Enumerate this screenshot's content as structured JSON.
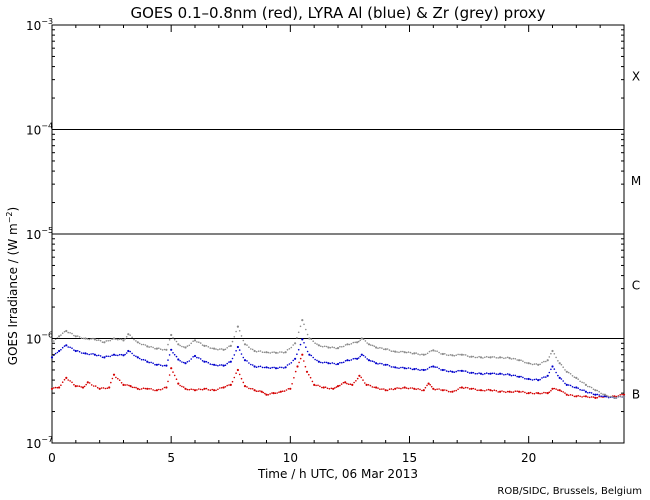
{
  "chart_data": {
    "type": "scatter",
    "title": "GOES 0.1–0.8nm (red), LYRA Al (blue) & Zr (grey) proxy",
    "xlabel": "Time / h UTC, 06 Mar 2013",
    "ylabel_parts": {
      "pre": "GOES Irradiance / (W m",
      "sup": "−2",
      "post": ")"
    },
    "footer": "ROB/SIDC, Brussels, Belgium",
    "x_range": [
      0,
      24
    ],
    "y_range": [
      1e-07,
      0.001
    ],
    "y_scale": "log",
    "x_ticks": [
      {
        "value": 0,
        "label": "0"
      },
      {
        "value": 5,
        "label": "5"
      },
      {
        "value": 10,
        "label": "10"
      },
      {
        "value": 15,
        "label": "15"
      },
      {
        "value": 20,
        "label": "20"
      }
    ],
    "y_ticks": [
      {
        "value": 1e-07,
        "base": "10",
        "exp": "−7"
      },
      {
        "value": 1e-06,
        "base": "10",
        "exp": "−6"
      },
      {
        "value": 1e-05,
        "base": "10",
        "exp": "−5"
      },
      {
        "value": 0.0001,
        "base": "10",
        "exp": "−4"
      },
      {
        "value": 0.001,
        "base": "10",
        "exp": "−3"
      }
    ],
    "flare_levels": [
      1e-06,
      1e-05,
      0.0001
    ],
    "classes": [
      {
        "label": "X",
        "y": 0.00032
      },
      {
        "label": "M",
        "y": 3.2e-05
      },
      {
        "label": "C",
        "y": 3.2e-06
      },
      {
        "label": "B",
        "y": 2.9e-07
      }
    ],
    "colors": {
      "red": "#d40000",
      "blue": "#0000cc",
      "grey": "#8c8c8c"
    },
    "series": [
      {
        "color": "red",
        "x": [
          0,
          0.3,
          0.6,
          1.0,
          1.3,
          1.5,
          2.0,
          2.4,
          2.6,
          3.0,
          3.3,
          3.6,
          4.0,
          4.4,
          4.8,
          5.0,
          5.3,
          5.6,
          6.0,
          6.4,
          6.8,
          7.2,
          7.5,
          7.8,
          8.1,
          8.5,
          8.8,
          9.0,
          9.3,
          9.6,
          10.0,
          10.3,
          10.5,
          10.7,
          11.0,
          11.4,
          11.8,
          12.0,
          12.3,
          12.6,
          12.9,
          13.2,
          13.6,
          14.0,
          14.4,
          14.8,
          15.2,
          15.6,
          15.8,
          16.0,
          16.4,
          16.8,
          17.2,
          17.6,
          18.0,
          18.4,
          18.8,
          19.2,
          19.6,
          20.0,
          20.4,
          20.8,
          21.0,
          21.3,
          21.6,
          22.0,
          22.4,
          22.8,
          23.2,
          23.6,
          24.0
        ],
        "y": [
          3.3e-07,
          3.4e-07,
          4.2e-07,
          3.5e-07,
          3.4e-07,
          3.8e-07,
          3.3e-07,
          3.4e-07,
          4.5e-07,
          3.6e-07,
          3.5e-07,
          3.3e-07,
          3.3e-07,
          3.2e-07,
          3.4e-07,
          5.2e-07,
          3.7e-07,
          3.3e-07,
          3.2e-07,
          3.3e-07,
          3.2e-07,
          3.4e-07,
          3.6e-07,
          5e-07,
          3.5e-07,
          3.2e-07,
          3.1e-07,
          2.9e-07,
          3e-07,
          3.1e-07,
          3.3e-07,
          5.4e-07,
          7e-07,
          4.8e-07,
          3.6e-07,
          3.4e-07,
          3.3e-07,
          3.5e-07,
          3.8e-07,
          3.6e-07,
          4.4e-07,
          3.6e-07,
          3.4e-07,
          3.2e-07,
          3.3e-07,
          3.4e-07,
          3.3e-07,
          3.2e-07,
          3.7e-07,
          3.3e-07,
          3.2e-07,
          3.1e-07,
          3.4e-07,
          3.3e-07,
          3.2e-07,
          3.2e-07,
          3.1e-07,
          3.1e-07,
          3.1e-07,
          3e-07,
          3e-07,
          3e-07,
          3.3e-07,
          3.2e-07,
          2.9e-07,
          2.8e-07,
          2.8e-07,
          2.7e-07,
          2.8e-07,
          2.8e-07,
          2.9e-07
        ]
      },
      {
        "color": "blue",
        "x": [
          0,
          0.3,
          0.6,
          1.0,
          1.4,
          1.8,
          2.2,
          2.6,
          3.0,
          3.2,
          3.6,
          4.0,
          4.4,
          4.8,
          5.0,
          5.3,
          5.6,
          6.0,
          6.4,
          6.8,
          7.2,
          7.5,
          7.8,
          8.1,
          8.5,
          9.0,
          9.4,
          9.8,
          10.2,
          10.5,
          10.8,
          11.2,
          11.6,
          12.0,
          12.4,
          12.8,
          13.0,
          13.3,
          13.6,
          14.0,
          14.4,
          14.8,
          15.2,
          15.6,
          16.0,
          16.4,
          16.8,
          17.2,
          17.6,
          18.0,
          18.4,
          18.8,
          19.2,
          19.6,
          20.0,
          20.4,
          20.8,
          21.0,
          21.3,
          21.6,
          22.0,
          22.4,
          22.8,
          23.2,
          23.6,
          24.0
        ],
        "y": [
          6.6e-07,
          7.6e-07,
          8.6e-07,
          7.6e-07,
          7.2e-07,
          7e-07,
          6.6e-07,
          7e-07,
          6.9e-07,
          7.6e-07,
          6.6e-07,
          6e-07,
          5.6e-07,
          5.5e-07,
          7.8e-07,
          6.3e-07,
          5.8e-07,
          6.8e-07,
          6e-07,
          5.6e-07,
          5.5e-07,
          6e-07,
          8.3e-07,
          6.2e-07,
          5.4e-07,
          5.3e-07,
          5.2e-07,
          5.3e-07,
          6.4e-07,
          9.8e-07,
          7e-07,
          6e-07,
          5.8e-07,
          5.7e-07,
          6.2e-07,
          6.4e-07,
          7e-07,
          6.2e-07,
          5.8e-07,
          5.6e-07,
          5.3e-07,
          5.2e-07,
          5.1e-07,
          5e-07,
          5.4e-07,
          5e-07,
          4.8e-07,
          4.9e-07,
          4.7e-07,
          4.6e-07,
          4.6e-07,
          4.6e-07,
          4.5e-07,
          4.3e-07,
          4.1e-07,
          4e-07,
          4.4e-07,
          5.4e-07,
          4.2e-07,
          3.6e-07,
          3.4e-07,
          3.1e-07,
          2.9e-07,
          2.8e-07,
          2.7e-07,
          2.8e-07
        ]
      },
      {
        "color": "grey",
        "x": [
          0,
          0.3,
          0.6,
          1.0,
          1.4,
          1.8,
          2.2,
          2.6,
          3.0,
          3.2,
          3.6,
          4.0,
          4.4,
          4.8,
          5.0,
          5.3,
          5.6,
          6.0,
          6.4,
          6.8,
          7.2,
          7.5,
          7.8,
          8.1,
          8.5,
          9.0,
          9.4,
          9.8,
          10.2,
          10.5,
          10.8,
          11.2,
          11.6,
          12.0,
          12.4,
          12.8,
          13.0,
          13.3,
          13.6,
          14.0,
          14.4,
          14.8,
          15.2,
          15.6,
          16.0,
          16.4,
          16.8,
          17.2,
          17.6,
          18.0,
          18.4,
          18.8,
          19.2,
          19.6,
          20.0,
          20.4,
          20.8,
          21.0,
          21.3,
          21.6,
          22.0,
          22.4,
          22.8,
          23.2,
          23.6,
          24.0
        ],
        "y": [
          9e-07,
          1.05e-06,
          1.18e-06,
          1.05e-06,
          1e-06,
          9.8e-07,
          9.2e-07,
          1e-06,
          9.6e-07,
          1.1e-06,
          9.2e-07,
          8.4e-07,
          8e-07,
          7.8e-07,
          1.08e-06,
          8.8e-07,
          8.2e-07,
          9.6e-07,
          8.5e-07,
          8e-07,
          7.8e-07,
          8.5e-07,
          1.3e-06,
          8.8e-07,
          7.6e-07,
          7.4e-07,
          7.3e-07,
          7.4e-07,
          9e-07,
          1.5e-06,
          1e-06,
          8.6e-07,
          8.2e-07,
          8.1e-07,
          8.8e-07,
          9.2e-07,
          1e-06,
          8.8e-07,
          8.2e-07,
          7.9e-07,
          7.5e-07,
          7.4e-07,
          7.2e-07,
          7e-07,
          7.7e-07,
          7.1e-07,
          6.9e-07,
          7e-07,
          6.7e-07,
          6.6e-07,
          6.6e-07,
          6.6e-07,
          6.5e-07,
          6.2e-07,
          5.8e-07,
          5.6e-07,
          6.2e-07,
          7.6e-07,
          5.8e-07,
          4.8e-07,
          4.2e-07,
          3.6e-07,
          3.2e-07,
          2.9e-07,
          2.7e-07,
          2.8e-07
        ]
      }
    ]
  }
}
